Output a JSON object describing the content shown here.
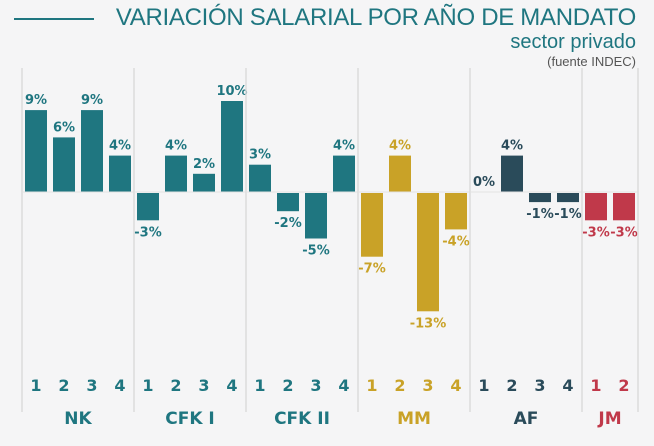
{
  "chart_data": {
    "type": "bar",
    "title": "VARIACIÓN SALARIAL POR AÑO DE MANDATO",
    "subtitle": "sector privado",
    "source": "(fuente INDEC)",
    "xlabel": "",
    "ylabel": "",
    "ylim": [
      -14,
      11
    ],
    "grid": false,
    "unit": "%",
    "groups": [
      {
        "name": "NK",
        "color": "#1f7680",
        "categories": [
          "1",
          "2",
          "3",
          "4"
        ],
        "values": [
          9,
          6,
          9,
          4
        ],
        "labels": [
          "9%",
          "6%",
          "9%",
          "4%"
        ]
      },
      {
        "name": "CFK I",
        "color": "#1f7680",
        "categories": [
          "1",
          "2",
          "3",
          "4"
        ],
        "values": [
          -3,
          4,
          2,
          10
        ],
        "labels": [
          "-3%",
          "4%",
          "2%",
          "10%"
        ]
      },
      {
        "name": "CFK II",
        "color": "#1f7680",
        "categories": [
          "1",
          "2",
          "3",
          "4"
        ],
        "values": [
          3,
          -2,
          -5,
          4
        ],
        "labels": [
          "3%",
          "-2%",
          "-5%",
          "4%"
        ]
      },
      {
        "name": "MM",
        "color": "#c9a227",
        "categories": [
          "1",
          "2",
          "3",
          "4"
        ],
        "values": [
          -7,
          4,
          -13,
          -4
        ],
        "labels": [
          "-7%",
          "4%",
          "-13%",
          "-4%"
        ]
      },
      {
        "name": "AF",
        "color": "#2a4b5a",
        "categories": [
          "1",
          "2",
          "3",
          "4"
        ],
        "values": [
          0,
          4,
          -1,
          -1
        ],
        "labels": [
          "0%",
          "4%",
          "-1%",
          "-1%"
        ]
      },
      {
        "name": "JM",
        "color": "#c0394a",
        "categories": [
          "1",
          "2"
        ],
        "values": [
          -3,
          -3
        ],
        "labels": [
          "-3%",
          "-3%"
        ]
      }
    ]
  }
}
